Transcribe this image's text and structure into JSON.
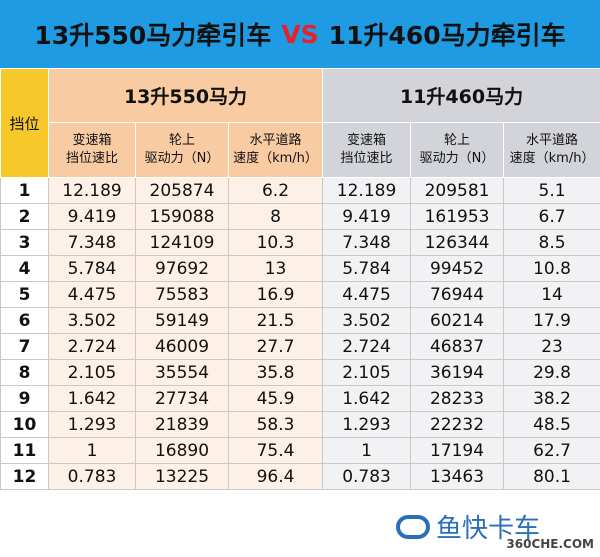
{
  "header": {
    "title_left": "13升550马力牵引车",
    "title_vs": "VS",
    "title_right": "11升460马力牵引车"
  },
  "table": {
    "corner": "挡位",
    "groups": [
      {
        "name": "13升550马力",
        "columns": [
          [
            "变速箱",
            "挡位速比"
          ],
          [
            "轮上",
            "驱动力（N）"
          ],
          [
            "水平道路",
            "速度（km/h）"
          ]
        ]
      },
      {
        "name": "11升460马力",
        "columns": [
          [
            "变速箱",
            "挡位速比"
          ],
          [
            "轮上",
            "驱动力（N）"
          ],
          [
            "水平道路",
            "速度（km/h）"
          ]
        ]
      }
    ],
    "rows": [
      [
        1,
        12.189,
        205874,
        6.2,
        12.189,
        209581,
        5.1
      ],
      [
        2,
        9.419,
        159088,
        8,
        9.419,
        161953,
        6.7
      ],
      [
        3,
        7.348,
        124109,
        10.3,
        7.348,
        126344,
        8.5
      ],
      [
        4,
        5.784,
        97692,
        13,
        5.784,
        99452,
        10.8
      ],
      [
        5,
        4.475,
        75583,
        16.9,
        4.475,
        76944,
        14
      ],
      [
        6,
        3.502,
        59149,
        21.5,
        3.502,
        60214,
        17.9
      ],
      [
        7,
        2.724,
        46009,
        27.7,
        2.724,
        46837,
        23
      ],
      [
        8,
        2.105,
        35554,
        35.8,
        2.105,
        36194,
        29.8
      ],
      [
        9,
        1.642,
        27734,
        45.9,
        1.642,
        28233,
        38.2
      ],
      [
        10,
        1.293,
        21839,
        58.3,
        1.293,
        22232,
        48.5
      ],
      [
        11,
        1,
        16890,
        75.4,
        1,
        17194,
        62.7
      ],
      [
        12,
        0.783,
        13225,
        96.4,
        0.783,
        13463,
        80.1
      ]
    ]
  },
  "footer": {
    "logo": "鱼快卡车",
    "watermark": "360CHE.COM"
  }
}
